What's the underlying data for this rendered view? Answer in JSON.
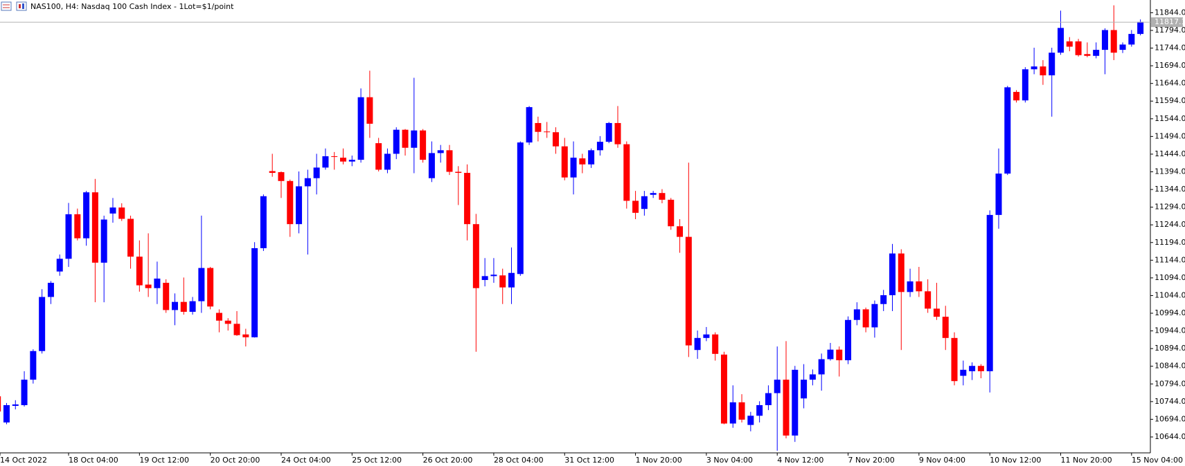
{
  "chart_data": {
    "type": "candlestick",
    "title": "NAS100, H4:  Nasdaq 100 Cash Index - 1Lot=$1/point",
    "up_color": "#0000ff",
    "down_color": "#ff0000",
    "categories": [
      "14 Oct 2022",
      null,
      null,
      null,
      null,
      null,
      null,
      null,
      "18 Oct 04:00",
      null,
      null,
      null,
      null,
      null,
      null,
      null,
      "19 Oct 12:00",
      null,
      null,
      null,
      null,
      null,
      null,
      null,
      "20 Oct 20:00",
      null,
      null,
      null,
      null,
      null,
      null,
      null,
      "24 Oct 04:00",
      null,
      null,
      null,
      null,
      null,
      null,
      null,
      "25 Oct 12:00",
      null,
      null,
      null,
      null,
      null,
      null,
      null,
      "26 Oct 20:00",
      null,
      null,
      null,
      null,
      null,
      null,
      null,
      "28 Oct 04:00",
      null,
      null,
      null,
      null,
      null,
      null,
      null,
      "31 Oct 12:00",
      null,
      null,
      null,
      null,
      null,
      null,
      null,
      "1 Nov 20:00",
      null,
      null,
      null,
      null,
      null,
      null,
      null,
      "3 Nov 04:00",
      null,
      null,
      null,
      null,
      null,
      null,
      null,
      "4 Nov 12:00",
      null,
      null,
      null,
      null,
      null,
      null,
      null,
      "7 Nov 20:00",
      null,
      null,
      null,
      null,
      null,
      null,
      null,
      "9 Nov 04:00",
      null,
      null,
      null,
      null,
      null,
      null,
      null,
      "10 Nov 12:00",
      null,
      null,
      null,
      null,
      null,
      null,
      null,
      "11 Nov 20:00",
      null,
      null,
      null,
      null,
      null,
      null,
      null,
      "15 Nov 04:00",
      null
    ],
    "open": [
      10759,
      10685,
      10732,
      10734,
      10806,
      10887,
      11040,
      11112,
      11148,
      11274,
      11206,
      11336,
      11137,
      11276,
      11293,
      11261,
      11154,
      11075,
      11065,
      11080,
      11003,
      11026,
      10998,
      11028,
      11122,
      10995,
      10973,
      10964,
      10934,
      10926,
      11178,
      11396,
      11393,
      11368,
      11246,
      11353,
      11376,
      11406,
      11438,
      11434,
      11423,
      11428,
      11605,
      11475,
      11400,
      11445,
      11513,
      11462,
      11511,
      11376,
      11447,
      11455,
      11394,
      11391,
      11246,
      11088,
      11099,
      11101,
      11067,
      11105,
      11477,
      11532,
      11508,
      11506,
      11466,
      11378,
      11432,
      11415,
      11455,
      11479,
      11532,
      11472,
      11312,
      11289,
      11329,
      11334,
      11315,
      11240,
      11210,
      10890,
      10924,
      10934,
      10877,
      10682,
      10742,
      10678,
      10704,
      10734,
      10768,
      10806,
      10648,
      10753,
      10806,
      10821,
      10864,
      10891,
      10861,
      10975,
      11005,
      10954,
      11020,
      11045,
      11163,
      11054,
      11084,
      11056,
      11007,
      10984,
      10924,
      10817,
      10830,
      10845,
      10830,
      11272,
      11389,
      11620,
      11596,
      11684,
      11692,
      11667,
      11731,
      11763,
      11763,
      11727,
      11722,
      11739,
      11795,
      11739,
      11754,
      11784
    ],
    "high": [
      10762,
      10740,
      10748,
      10830,
      10892,
      11062,
      11085,
      11160,
      11306,
      11290,
      11340,
      11374,
      11270,
      11320,
      11305,
      11270,
      11200,
      11220,
      11140,
      11090,
      11050,
      11095,
      11040,
      11270,
      11125,
      11005,
      10980,
      11000,
      10950,
      11195,
      11330,
      11445,
      11395,
      11372,
      11395,
      11400,
      11445,
      11460,
      11450,
      11460,
      11440,
      11630,
      11680,
      11490,
      11460,
      11520,
      11515,
      11660,
      11515,
      11480,
      11470,
      11470,
      11410,
      11415,
      11275,
      11150,
      11150,
      11120,
      11180,
      11480,
      11580,
      11550,
      11535,
      11520,
      11490,
      11480,
      11445,
      11460,
      11495,
      11535,
      11580,
      11480,
      11340,
      11340,
      11340,
      11345,
      11320,
      11260,
      11420,
      10945,
      10955,
      10940,
      10885,
      10790,
      10765,
      10715,
      10745,
      10790,
      10900,
      10915,
      10845,
      10850,
      10835,
      10880,
      10910,
      10900,
      10985,
      11025,
      11010,
      11030,
      11060,
      11190,
      11175,
      11120,
      11125,
      11090,
      11080,
      11015,
      10940,
      10860,
      10855,
      10850,
      11285,
      11460,
      11637,
      11625,
      11690,
      11745,
      11710,
      11745,
      11850,
      11775,
      11770,
      11760,
      11760,
      11800,
      11865,
      11760,
      11795,
      11825
    ],
    "low": [
      10700,
      10680,
      10722,
      10730,
      10795,
      10880,
      11020,
      11100,
      11125,
      11200,
      11185,
      11025,
      11025,
      11250,
      11255,
      11120,
      11055,
      11040,
      11020,
      10995,
      10960,
      10990,
      10990,
      10995,
      11005,
      10940,
      10945,
      10930,
      10900,
      10925,
      11170,
      11380,
      11320,
      11210,
      11220,
      11160,
      11330,
      11400,
      11400,
      11415,
      11410,
      11420,
      11490,
      11395,
      11390,
      11430,
      11440,
      11390,
      11420,
      11365,
      11420,
      11385,
      11300,
      11200,
      10885,
      11070,
      11080,
      11020,
      11020,
      11100,
      11470,
      11480,
      11490,
      11445,
      11370,
      11330,
      11390,
      11405,
      11440,
      11475,
      11462,
      11290,
      11260,
      11270,
      11320,
      11305,
      11230,
      11165,
      10870,
      10865,
      10915,
      10860,
      10680,
      10670,
      10685,
      10660,
      10685,
      10720,
      10605,
      10640,
      10630,
      10725,
      10790,
      10775,
      10860,
      10815,
      10850,
      10960,
      10940,
      10925,
      11000,
      11000,
      10890,
      11040,
      11040,
      10995,
      10975,
      10890,
      10790,
      10790,
      10805,
      10810,
      10770,
      11233,
      11385,
      11590,
      11590,
      11670,
      11640,
      11550,
      11725,
      11735,
      11720,
      11718,
      11715,
      11670,
      11710,
      11730,
      11748,
      11780
    ],
    "close": [
      10716,
      10734,
      10736,
      10806,
      10887,
      11040,
      11080,
      11148,
      11274,
      11206,
      11336,
      11137,
      11259,
      11293,
      11261,
      11154,
      11073,
      11065,
      11092,
      11003,
      11026,
      10998,
      11028,
      11122,
      11013,
      10973,
      10964,
      10932,
      10926,
      11178,
      11325,
      11391,
      11368,
      11246,
      11353,
      11376,
      11406,
      11438,
      11436,
      11423,
      11428,
      11605,
      11530,
      11400,
      11445,
      11513,
      11462,
      11511,
      11428,
      11447,
      11455,
      11394,
      11391,
      11246,
      11065,
      11099,
      11103,
      11067,
      11108,
      11477,
      11577,
      11507,
      11506,
      11466,
      11378,
      11434,
      11415,
      11455,
      11479,
      11532,
      11472,
      11312,
      11278,
      11325,
      11334,
      11315,
      11240,
      11210,
      10903,
      10924,
      10934,
      10879,
      10682,
      10742,
      10693,
      10704,
      10734,
      10768,
      10806,
      10648,
      10834,
      10806,
      10821,
      10864,
      10891,
      10861,
      10975,
      11005,
      10954,
      11020,
      11045,
      11163,
      11054,
      11084,
      11056,
      11007,
      10984,
      10924,
      10802,
      10834,
      10845,
      10830,
      11272,
      11389,
      11633,
      11596,
      11684,
      11692,
      11667,
      11731,
      11801,
      11748,
      11724,
      11722,
      11739,
      11795,
      11731,
      11754,
      11784,
      11818
    ],
    "current_price": {
      "value": 11817.1,
      "label": "11817.1"
    },
    "ylim": [
      10599,
      11880
    ],
    "yticks": [
      {
        "value": 10644,
        "label": "10644.0"
      },
      {
        "value": 10694,
        "label": "10694.0"
      },
      {
        "value": 10744,
        "label": "10744.0"
      },
      {
        "value": 10794,
        "label": "10794.0"
      },
      {
        "value": 10844,
        "label": "10844.0"
      },
      {
        "value": 10894,
        "label": "10894.0"
      },
      {
        "value": 10944,
        "label": "10944.0"
      },
      {
        "value": 10994,
        "label": "10994.0"
      },
      {
        "value": 11044,
        "label": "11044.0"
      },
      {
        "value": 11094,
        "label": "11094.0"
      },
      {
        "value": 11144,
        "label": "11144.0"
      },
      {
        "value": 11194,
        "label": "11194.0"
      },
      {
        "value": 11244,
        "label": "11244.0"
      },
      {
        "value": 11294,
        "label": "11294.0"
      },
      {
        "value": 11344,
        "label": "11344.0"
      },
      {
        "value": 11394,
        "label": "11394.0"
      },
      {
        "value": 11444,
        "label": "11444.0"
      },
      {
        "value": 11494,
        "label": "11494.0"
      },
      {
        "value": 11544,
        "label": "11544.0"
      },
      {
        "value": 11594,
        "label": "11594.0"
      },
      {
        "value": 11644,
        "label": "11644.0"
      },
      {
        "value": 11694,
        "label": "11694.0"
      },
      {
        "value": 11744,
        "label": "11744.0"
      },
      {
        "value": 11794,
        "label": "11794.0"
      },
      {
        "value": 11844,
        "label": "11844.0"
      }
    ]
  }
}
